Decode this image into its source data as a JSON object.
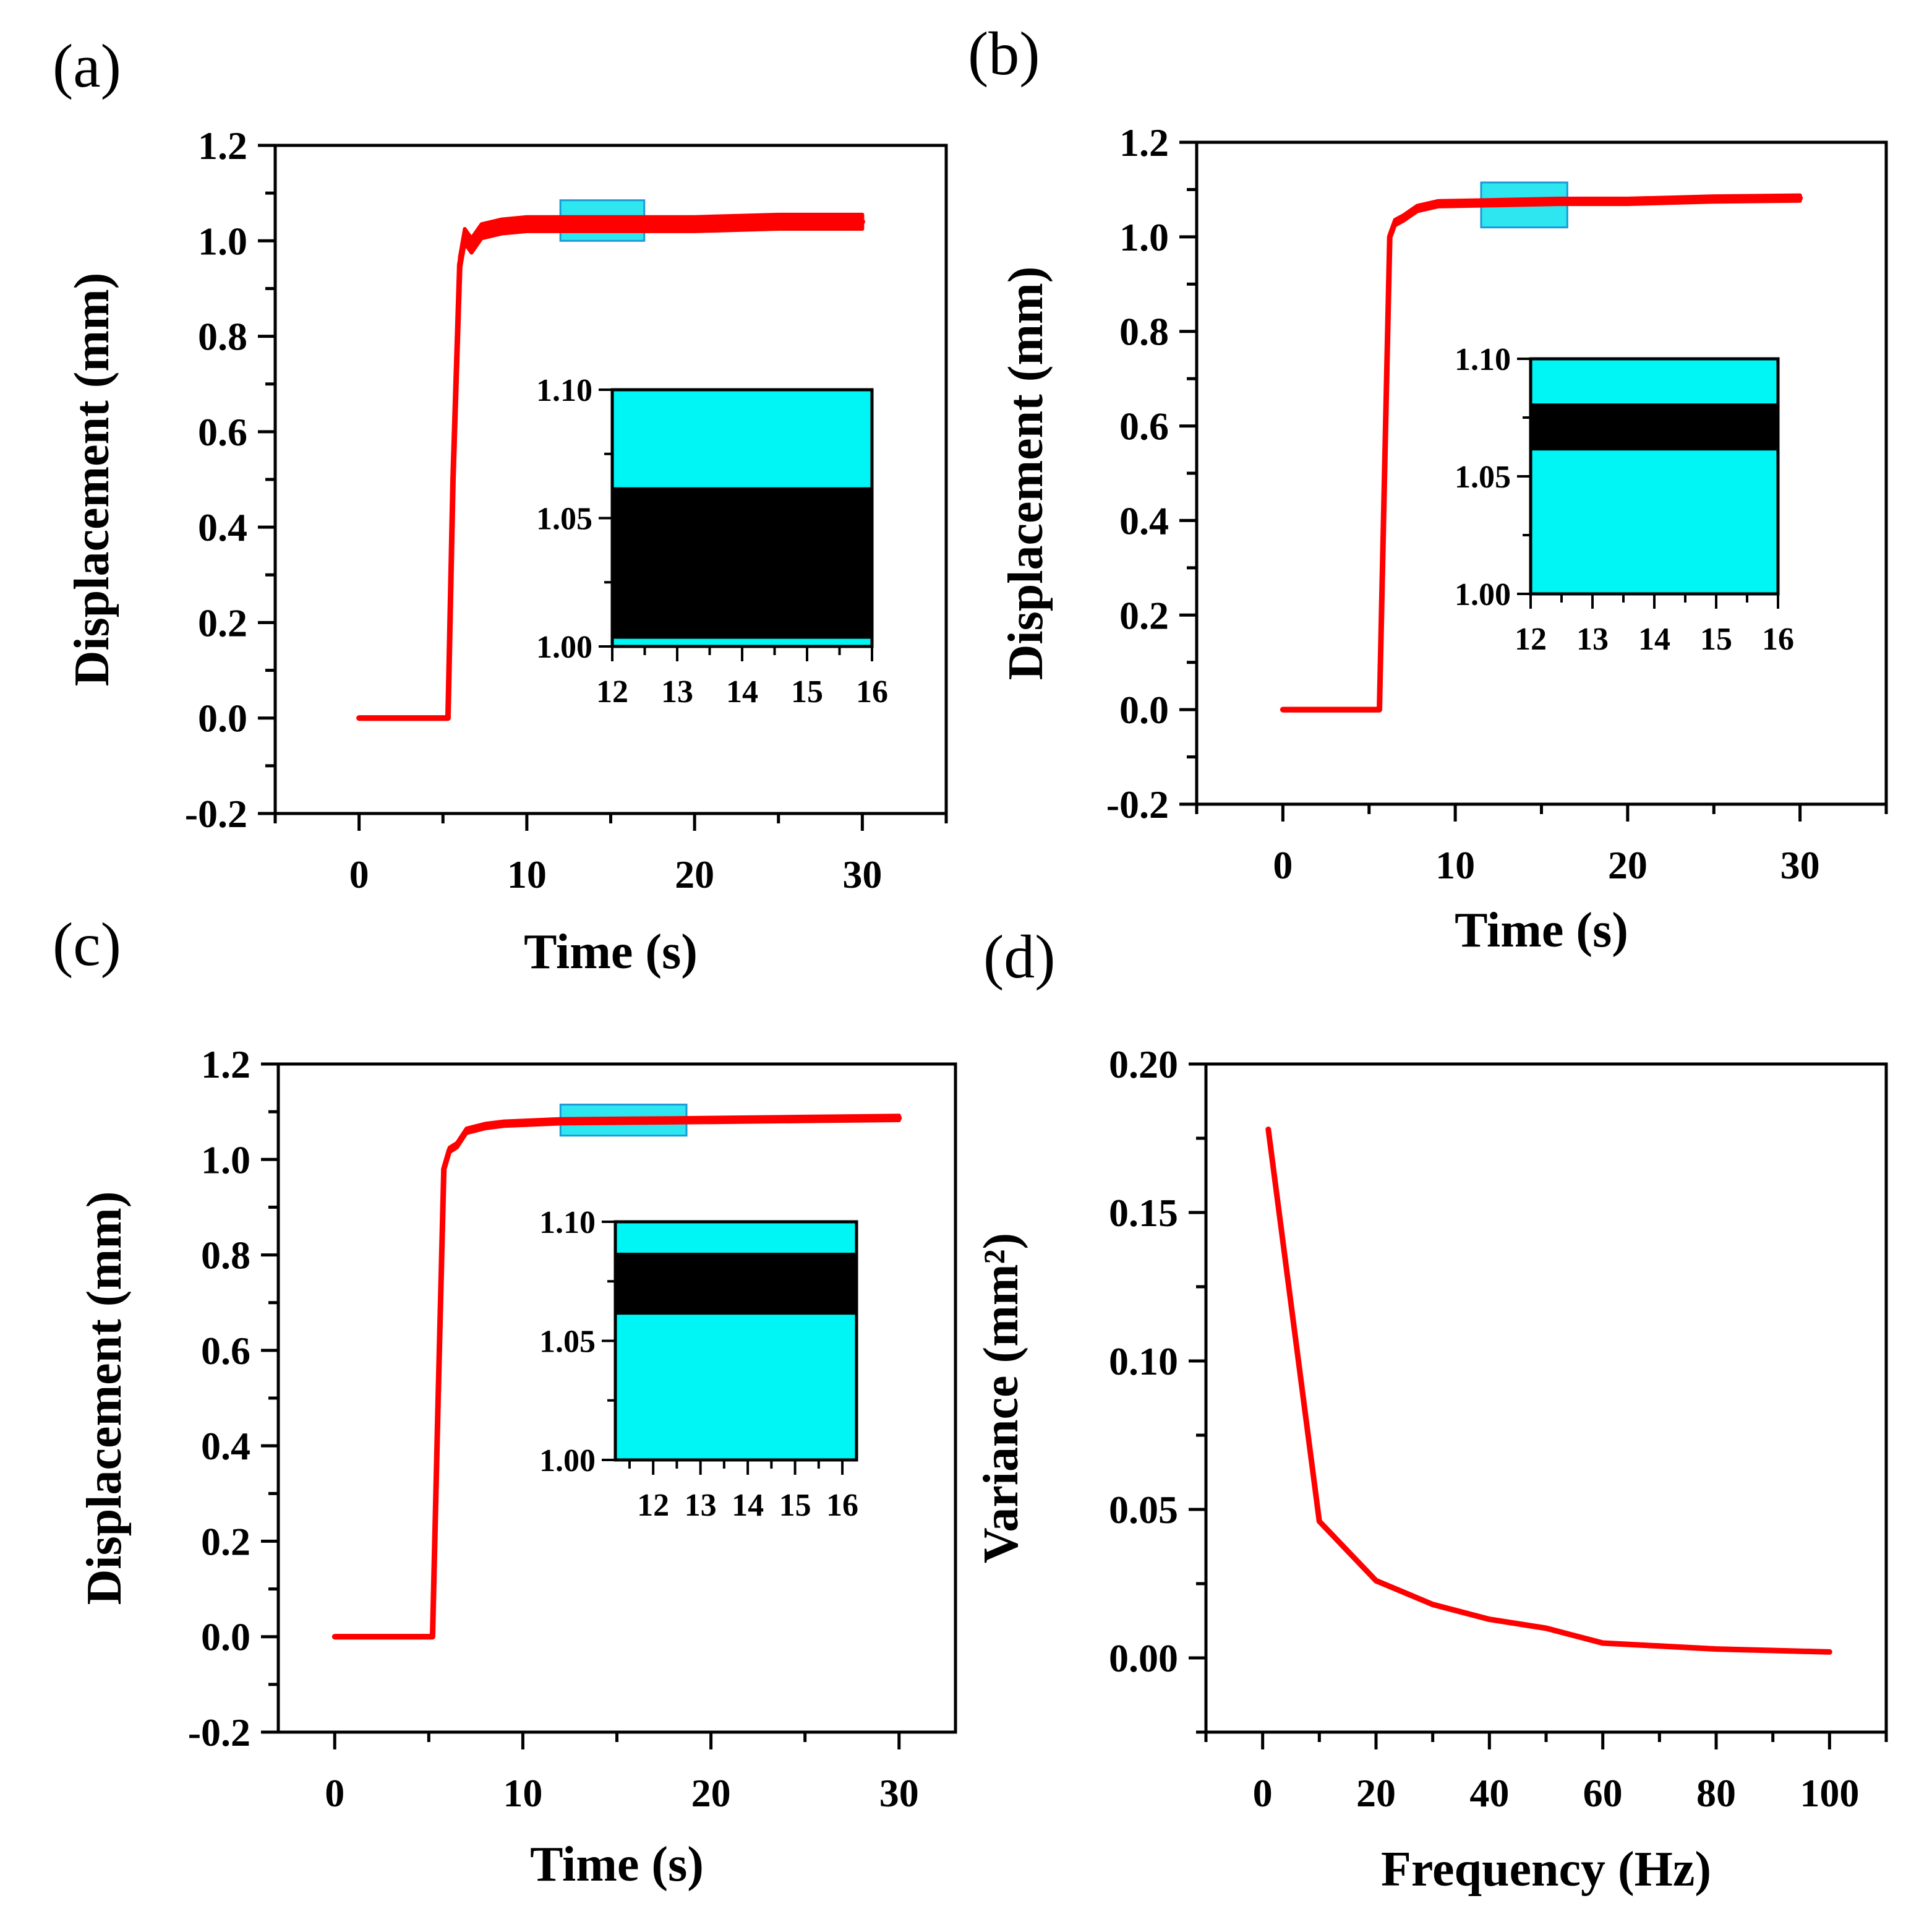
{
  "figure": {
    "panel_labels": [
      "(a)",
      "(b)",
      "(c)",
      "(d)"
    ]
  },
  "colors": {
    "series": "#ff0000",
    "inset_background": "#00f5f5",
    "inset_band": "#000000",
    "highlight_box": "#2ee6f0",
    "axis": "#000000"
  },
  "chart_data": [
    {
      "panel": "(a)",
      "type": "line",
      "title": "",
      "xlabel": "Time (s)",
      "ylabel": "Displacement (mm)",
      "xlim": [
        -5,
        35
      ],
      "ylim": [
        -0.2,
        1.2
      ],
      "xticks": [
        0,
        10,
        20,
        30
      ],
      "yticks": [
        -0.2,
        0.0,
        0.2,
        0.4,
        0.6,
        0.8,
        1.0,
        1.2
      ],
      "xtick_labels": [
        "0",
        "10",
        "20",
        "30"
      ],
      "ytick_labels": [
        "-0.2",
        "0.0",
        "0.2",
        "0.4",
        "0.6",
        "0.8",
        "1.0",
        "1.2"
      ],
      "series": [
        {
          "name": "displacement",
          "x": [
            0,
            5.3,
            5.6,
            6.0,
            6.3,
            6.7,
            7.3,
            8.5,
            10,
            15,
            20,
            25,
            30
          ],
          "y": [
            0,
            0,
            0.5,
            0.95,
            1.01,
            0.99,
            1.02,
            1.03,
            1.035,
            1.035,
            1.035,
            1.04,
            1.04
          ],
          "noise_band": 0.03
        }
      ],
      "highlight": {
        "x": [
          12,
          17
        ],
        "y": [
          1.0,
          1.085
        ]
      },
      "inset": {
        "xlim": [
          12,
          16
        ],
        "ylim": [
          1.0,
          1.1
        ],
        "xticks": [
          12,
          13,
          14,
          15,
          16
        ],
        "yticks": [
          1.0,
          1.05,
          1.1
        ],
        "xtick_labels": [
          "12",
          "13",
          "14",
          "15",
          "16"
        ],
        "ytick_labels": [
          "1.00",
          "1.05",
          "1.10"
        ],
        "band": [
          1.003,
          1.062
        ]
      }
    },
    {
      "panel": "(b)",
      "type": "line",
      "title": "",
      "xlabel": "Time (s)",
      "ylabel": "Displacement (mm)",
      "xlim": [
        -5,
        35
      ],
      "ylim": [
        -0.2,
        1.2
      ],
      "xticks": [
        0,
        10,
        20,
        30
      ],
      "yticks": [
        -0.2,
        0.0,
        0.2,
        0.4,
        0.6,
        0.8,
        1.0,
        1.2
      ],
      "xtick_labels": [
        "0",
        "10",
        "20",
        "30"
      ],
      "ytick_labels": [
        "-0.2",
        "0.0",
        "0.2",
        "0.4",
        "0.6",
        "0.8",
        "1.0",
        "1.2"
      ],
      "series": [
        {
          "name": "displacement",
          "x": [
            0,
            5.6,
            5.9,
            6.2,
            6.5,
            7.0,
            7.8,
            9,
            12,
            16,
            20,
            25,
            30
          ],
          "y": [
            0,
            0,
            0.5,
            1.0,
            1.03,
            1.04,
            1.06,
            1.07,
            1.072,
            1.075,
            1.075,
            1.08,
            1.082
          ],
          "noise_band": 0.012
        }
      ],
      "highlight": {
        "x": [
          11.5,
          16.5
        ],
        "y": [
          1.02,
          1.115
        ]
      },
      "inset": {
        "xlim": [
          12,
          16
        ],
        "ylim": [
          1.0,
          1.1
        ],
        "xticks": [
          12,
          13,
          14,
          15,
          16
        ],
        "yticks": [
          1.0,
          1.05,
          1.1
        ],
        "xtick_labels": [
          "12",
          "13",
          "14",
          "15",
          "16"
        ],
        "ytick_labels": [
          "1.00",
          "1.05",
          "1.10"
        ],
        "band": [
          1.061,
          1.081
        ]
      }
    },
    {
      "panel": "(c)",
      "type": "line",
      "title": "",
      "xlabel": "Time (s)",
      "ylabel": "Displacement (mm)",
      "xlim": [
        -3,
        33
      ],
      "ylim": [
        -0.2,
        1.2
      ],
      "xticks": [
        0,
        10,
        20,
        30
      ],
      "yticks": [
        -0.2,
        0.0,
        0.2,
        0.4,
        0.6,
        0.8,
        1.0,
        1.2
      ],
      "xtick_labels": [
        "0",
        "10",
        "20",
        "30"
      ],
      "ytick_labels": [
        "-0.2",
        "0.0",
        "0.2",
        "0.4",
        "0.6",
        "0.8",
        "1.0",
        "1.2"
      ],
      "series": [
        {
          "name": "displacement",
          "x": [
            0,
            5.2,
            5.5,
            5.8,
            6.1,
            6.5,
            7.0,
            8,
            9,
            12,
            18,
            25,
            30
          ],
          "y": [
            0,
            0,
            0.5,
            0.98,
            1.02,
            1.03,
            1.06,
            1.07,
            1.075,
            1.08,
            1.082,
            1.085,
            1.087
          ],
          "noise_band": 0.01
        }
      ],
      "highlight": {
        "x": [
          12,
          18.7
        ],
        "y": [
          1.05,
          1.115
        ]
      },
      "inset": {
        "xlim": [
          11.2,
          16.3
        ],
        "ylim": [
          1.0,
          1.1
        ],
        "xticks": [
          12,
          13,
          14,
          15,
          16
        ],
        "yticks": [
          1.0,
          1.05,
          1.1
        ],
        "xtick_labels": [
          "12",
          "13",
          "14",
          "15",
          "16"
        ],
        "ytick_labels": [
          "1.00",
          "1.05",
          "1.10"
        ],
        "band": [
          1.061,
          1.087
        ]
      }
    },
    {
      "panel": "(d)",
      "type": "line",
      "title": "",
      "xlabel": "Frequency (Hz)",
      "ylabel": "Variance (mm²)",
      "xlim": [
        -10,
        110
      ],
      "ylim": [
        -0.025,
        0.2
      ],
      "xticks": [
        0,
        20,
        40,
        60,
        80,
        100
      ],
      "yticks": [
        0.0,
        0.05,
        0.1,
        0.15,
        0.2
      ],
      "xtick_labels": [
        "0",
        "20",
        "40",
        "60",
        "80",
        "100"
      ],
      "ytick_labels": [
        "0.00",
        "0.05",
        "0.10",
        "0.15",
        "0.20"
      ],
      "series": [
        {
          "name": "variance",
          "x": [
            1,
            10,
            20,
            30,
            40,
            50,
            60,
            70,
            80,
            90,
            100
          ],
          "y": [
            0.178,
            0.046,
            0.026,
            0.018,
            0.013,
            0.01,
            0.005,
            0.004,
            0.003,
            0.0025,
            0.002
          ]
        }
      ]
    }
  ]
}
